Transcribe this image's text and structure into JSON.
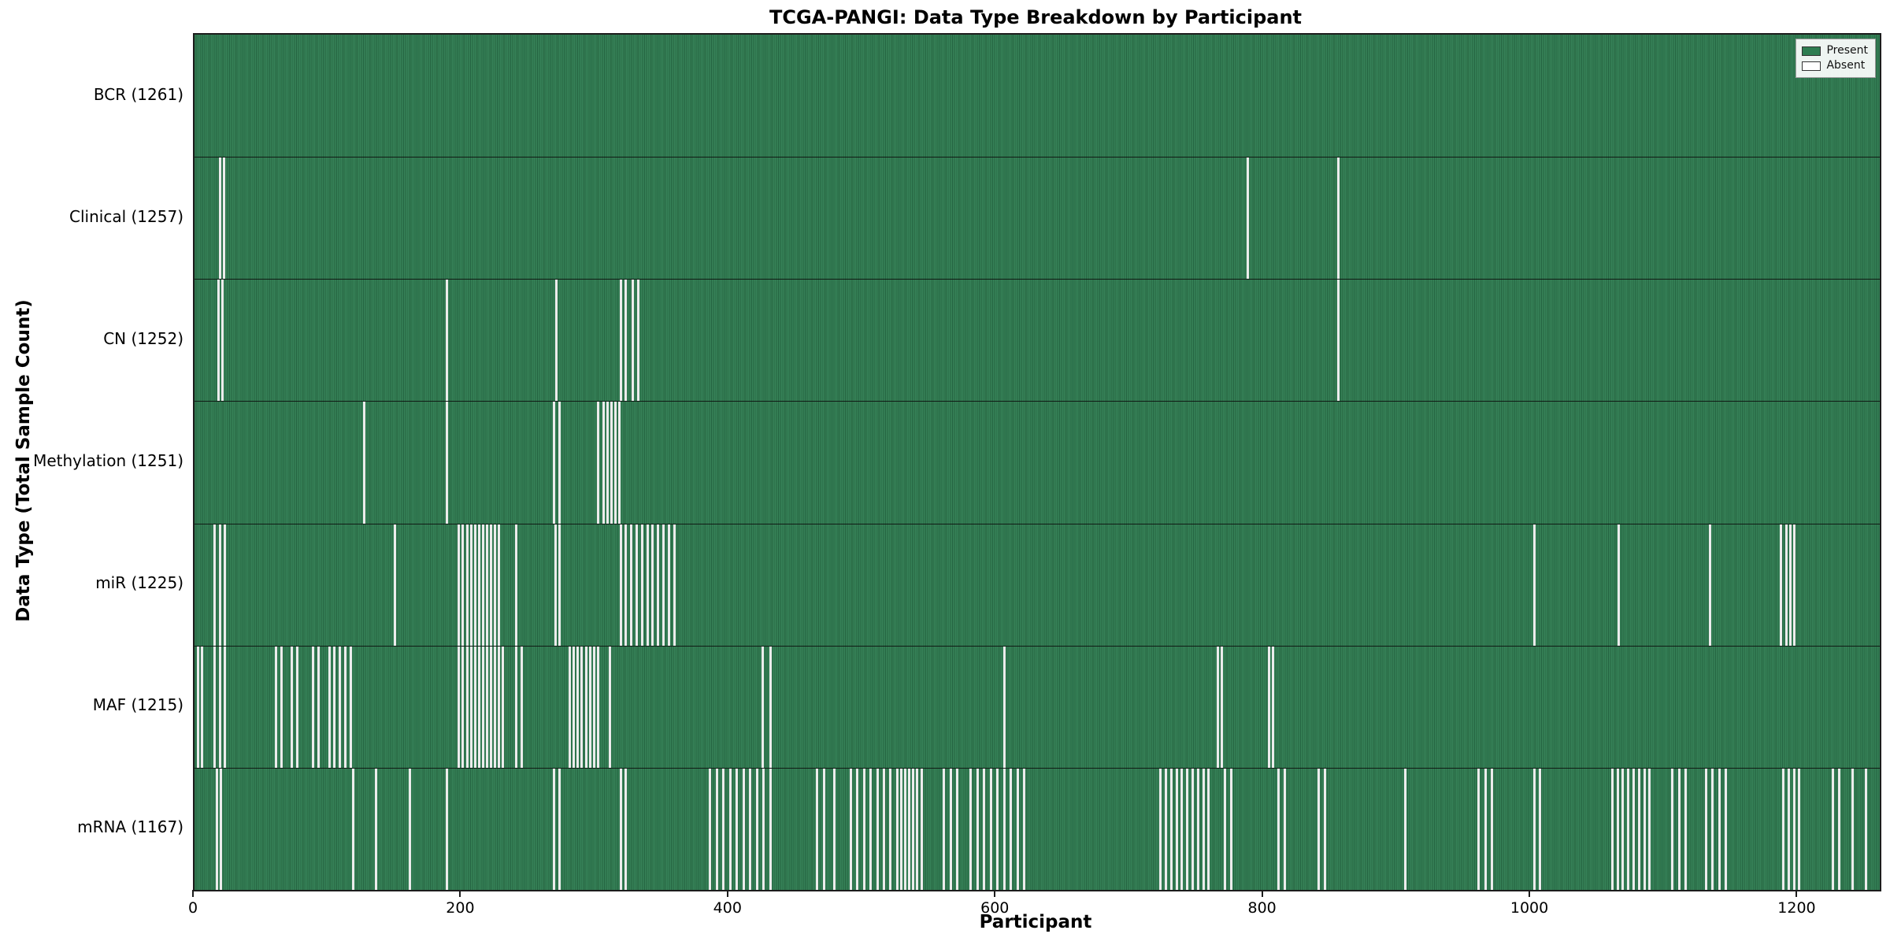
{
  "title": "TCGA-PANGI: Data Type Breakdown by Participant",
  "xlabel": "Participant",
  "ylabel": "Data Type (Total Sample Count)",
  "legend": {
    "present": "Present",
    "absent": "Absent"
  },
  "colors": {
    "present": "#2e7d51",
    "absent": "#ffffff",
    "border": "#1c1c1c"
  },
  "chart_data": {
    "type": "heatmap",
    "title": "TCGA-PANGI: Data Type Breakdown by Participant",
    "xlabel": "Participant",
    "ylabel": "Data Type (Total Sample Count)",
    "legend_position": "top-right",
    "x_ticks": [
      0,
      200,
      400,
      600,
      800,
      1000,
      1200
    ],
    "x_max": 1261,
    "n_participants": 1261,
    "cell_states": [
      "Present",
      "Absent"
    ],
    "rows": [
      {
        "label": "BCR (1261)",
        "data_type": "BCR",
        "total": 1261,
        "absent": []
      },
      {
        "label": "Clinical (1257)",
        "data_type": "Clinical",
        "total": 1257,
        "absent": [
          18,
          21,
          787,
          855
        ]
      },
      {
        "label": "CN (1252)",
        "data_type": "CN",
        "total": 1252,
        "absent": [
          17,
          20,
          188,
          270,
          318,
          322,
          327,
          331,
          855
        ]
      },
      {
        "label": "Methylation (1251)",
        "data_type": "Methylation",
        "total": 1251,
        "absent": [
          126,
          188,
          268,
          272,
          301,
          305,
          308,
          311,
          314,
          317
        ]
      },
      {
        "label": "miR (1225)",
        "data_type": "miR",
        "total": 1225,
        "absent": [
          14,
          18,
          22,
          149,
          197,
          200,
          203,
          206,
          209,
          212,
          215,
          218,
          221,
          224,
          227,
          240,
          269,
          272,
          318,
          322,
          326,
          330,
          334,
          338,
          342,
          346,
          350,
          354,
          358,
          1002,
          1065,
          1133,
          1186,
          1190,
          1193,
          1196
        ]
      },
      {
        "label": "MAF (1215)",
        "data_type": "MAF",
        "total": 1215,
        "absent": [
          2,
          5,
          14,
          18,
          22,
          60,
          64,
          72,
          76,
          88,
          92,
          100,
          104,
          108,
          112,
          116,
          197,
          200,
          203,
          206,
          209,
          212,
          215,
          218,
          221,
          224,
          227,
          230,
          240,
          244,
          280,
          283,
          286,
          289,
          292,
          295,
          298,
          301,
          310,
          424,
          430,
          605,
          765,
          768,
          803,
          806
        ]
      },
      {
        "label": "mRNA (1167)",
        "data_type": "mRNA",
        "total": 1167,
        "absent": [
          16,
          19,
          118,
          135,
          160,
          188,
          268,
          272,
          318,
          322,
          385,
          390,
          395,
          400,
          405,
          410,
          415,
          420,
          425,
          430,
          465,
          470,
          478,
          490,
          495,
          500,
          505,
          510,
          515,
          520,
          525,
          528,
          531,
          534,
          537,
          540,
          543,
          560,
          565,
          570,
          580,
          585,
          590,
          595,
          600,
          605,
          610,
          615,
          620,
          722,
          726,
          730,
          734,
          738,
          742,
          746,
          750,
          754,
          758,
          770,
          775,
          810,
          815,
          840,
          845,
          905,
          960,
          965,
          970,
          1002,
          1006,
          1060,
          1064,
          1068,
          1072,
          1076,
          1080,
          1084,
          1088,
          1105,
          1110,
          1115,
          1130,
          1135,
          1140,
          1145,
          1188,
          1192,
          1196,
          1200,
          1225,
          1230,
          1240,
          1250
        ]
      }
    ]
  }
}
